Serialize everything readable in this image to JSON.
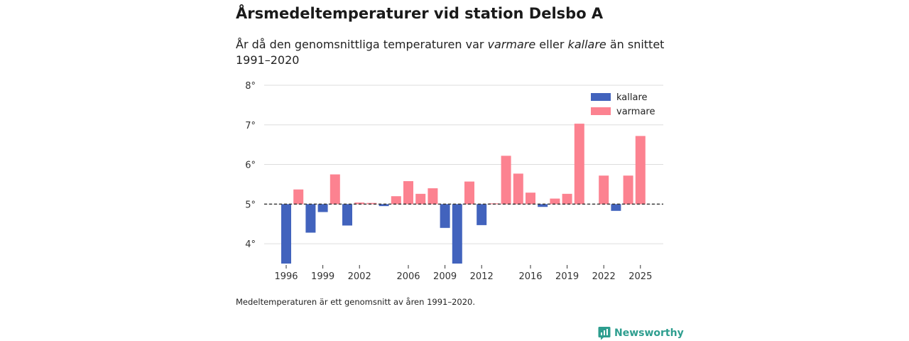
{
  "header": {
    "title": "Årsmedeltemperaturer vid station Delsbo A",
    "subtitle_parts": [
      "År då den genomsnittliga temperaturen var ",
      "varmare",
      " eller ",
      "kallare",
      " än snittet 1991–2020"
    ]
  },
  "footer": {
    "note": "Medeltemperaturen är ett genomsnitt av åren 1991–2020.",
    "brand": "Newsworthy"
  },
  "colors": {
    "kallare": "#4263bd",
    "varmare": "#fc8290",
    "grid": "#dddddd",
    "reference": "#333333",
    "brand": "#2e9e8f"
  },
  "chart_data": {
    "type": "bar",
    "title": "Årsmedeltemperaturer vid station Delsbo A",
    "xlabel": "",
    "ylabel": "",
    "baseline": 5.0,
    "ylim": [
      3.5,
      8.0
    ],
    "yticks": [
      4,
      5,
      6,
      7,
      8
    ],
    "ytick_labels": [
      "4°",
      "5°",
      "6°",
      "7°",
      "8°"
    ],
    "xticks": [
      1996,
      1999,
      2002,
      2006,
      2009,
      2012,
      2016,
      2019,
      2022,
      2025
    ],
    "xtick_labels": [
      "1996",
      "1999",
      "2002",
      "2006",
      "2009",
      "2012",
      "2016",
      "2019",
      "2022",
      "2025"
    ],
    "legend": {
      "position": "top-right",
      "entries": [
        {
          "key": "kallare",
          "label": "kallare"
        },
        {
          "key": "varmare",
          "label": "varmare"
        }
      ]
    },
    "years": [
      1996,
      1997,
      1998,
      1999,
      2000,
      2001,
      2002,
      2003,
      2004,
      2005,
      2006,
      2007,
      2008,
      2009,
      2010,
      2011,
      2012,
      2013,
      2014,
      2015,
      2016,
      2017,
      2018,
      2019,
      2020,
      2021,
      2022,
      2023,
      2024,
      2025
    ],
    "values": [
      3.5,
      5.37,
      4.28,
      4.8,
      5.75,
      4.46,
      5.04,
      5.03,
      4.95,
      5.2,
      5.58,
      5.26,
      5.4,
      4.4,
      3.5,
      5.57,
      4.47,
      5.02,
      6.22,
      5.77,
      5.29,
      4.93,
      5.14,
      5.26,
      7.03,
      5.0,
      5.72,
      4.83,
      5.72,
      6.72
    ]
  }
}
